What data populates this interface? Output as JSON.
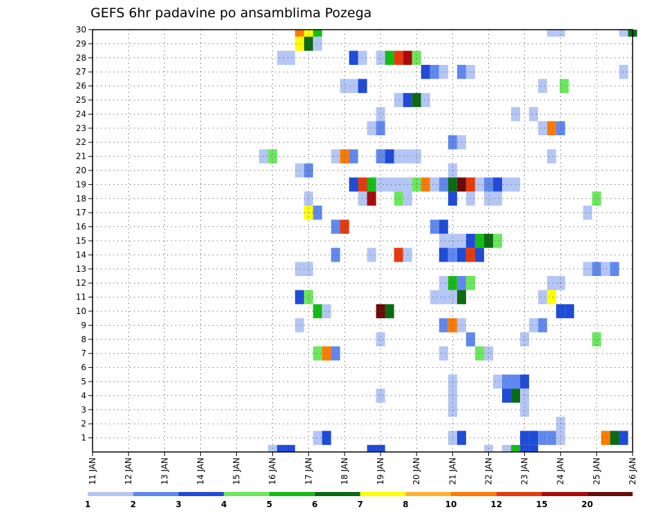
{
  "chart_data": {
    "type": "heatmap",
    "title": "GEFS 6hr padavine po ansamblima Pozega",
    "x_tick_labels": [
      "11 JAN",
      "12 JAN",
      "13 JAN",
      "14 JAN",
      "15 JAN",
      "16 JAN",
      "17 JAN",
      "18 JAN",
      "19 JAN",
      "20 JAN",
      "21 JAN",
      "22 JAN",
      "23 JAN",
      "24 JAN",
      "25 JAN",
      "26 JAN"
    ],
    "y_tick_labels": [
      "1",
      "2",
      "3",
      "4",
      "5",
      "6",
      "7",
      "8",
      "9",
      "10",
      "11",
      "12",
      "13",
      "14",
      "15",
      "16",
      "17",
      "18",
      "19",
      "20",
      "21",
      "22",
      "23",
      "24",
      "25",
      "26",
      "27",
      "28",
      "29",
      "30"
    ],
    "xlim": [
      "11 JAN 00Z",
      "26 JAN 00Z"
    ],
    "ylim": [
      0,
      30
    ],
    "grid": true,
    "colorbar": {
      "labels": [
        "1",
        "2",
        "3",
        "4",
        "5",
        "6",
        "7",
        "8",
        "10",
        "12",
        "15",
        "20"
      ],
      "colors": [
        "#b4c6f5",
        "#6088ee",
        "#1f4bd8",
        "#6ae85c",
        "#13bd13",
        "#0a6b13",
        "#ffff00",
        "#ffb02e",
        "#ff7a00",
        "#e63a0a",
        "#aa0a0a",
        "#6b0a0a"
      ]
    },
    "cells": [
      {
        "x": 5.75,
        "y": 30,
        "v": 10
      },
      {
        "x": 6.0,
        "y": 30,
        "v": 7
      },
      {
        "x": 6.25,
        "y": 30,
        "v": 5
      },
      {
        "x": 12.75,
        "y": 30,
        "v": 1
      },
      {
        "x": 13.0,
        "y": 30,
        "v": 1
      },
      {
        "x": 14.75,
        "y": 30,
        "v": 1
      },
      {
        "x": 15.0,
        "y": 30,
        "v": 6
      },
      {
        "x": 5.75,
        "y": 29,
        "v": 7
      },
      {
        "x": 6.0,
        "y": 29,
        "v": 6
      },
      {
        "x": 6.25,
        "y": 29,
        "v": 1
      },
      {
        "x": 5.25,
        "y": 28,
        "v": 1
      },
      {
        "x": 5.5,
        "y": 28,
        "v": 1
      },
      {
        "x": 7.25,
        "y": 28,
        "v": 3
      },
      {
        "x": 7.5,
        "y": 28,
        "v": 1
      },
      {
        "x": 8.0,
        "y": 28,
        "v": 1
      },
      {
        "x": 8.25,
        "y": 28,
        "v": 5
      },
      {
        "x": 8.5,
        "y": 28,
        "v": 12
      },
      {
        "x": 8.75,
        "y": 28,
        "v": 15
      },
      {
        "x": 9.0,
        "y": 28,
        "v": 4
      },
      {
        "x": 9.25,
        "y": 27,
        "v": 3
      },
      {
        "x": 9.5,
        "y": 27,
        "v": 2
      },
      {
        "x": 9.75,
        "y": 27,
        "v": 1
      },
      {
        "x": 10.25,
        "y": 27,
        "v": 2
      },
      {
        "x": 10.5,
        "y": 27,
        "v": 1
      },
      {
        "x": 14.75,
        "y": 27,
        "v": 1
      },
      {
        "x": 7.0,
        "y": 26,
        "v": 1
      },
      {
        "x": 7.25,
        "y": 26,
        "v": 1
      },
      {
        "x": 7.5,
        "y": 26,
        "v": 3
      },
      {
        "x": 12.5,
        "y": 26,
        "v": 1
      },
      {
        "x": 13.1,
        "y": 26,
        "v": 4
      },
      {
        "x": 8.5,
        "y": 25,
        "v": 1
      },
      {
        "x": 8.75,
        "y": 25,
        "v": 3
      },
      {
        "x": 9.0,
        "y": 25,
        "v": 6
      },
      {
        "x": 9.25,
        "y": 25,
        "v": 1
      },
      {
        "x": 8.0,
        "y": 24,
        "v": 1
      },
      {
        "x": 11.75,
        "y": 24,
        "v": 1
      },
      {
        "x": 12.25,
        "y": 24,
        "v": 1
      },
      {
        "x": 7.75,
        "y": 23,
        "v": 1
      },
      {
        "x": 8.0,
        "y": 23,
        "v": 2
      },
      {
        "x": 12.5,
        "y": 23,
        "v": 1
      },
      {
        "x": 12.75,
        "y": 23,
        "v": 10
      },
      {
        "x": 13.0,
        "y": 23,
        "v": 2
      },
      {
        "x": 10.0,
        "y": 22,
        "v": 2
      },
      {
        "x": 10.25,
        "y": 22,
        "v": 1
      },
      {
        "x": 4.75,
        "y": 21,
        "v": 1
      },
      {
        "x": 5.0,
        "y": 21,
        "v": 4
      },
      {
        "x": 6.75,
        "y": 21,
        "v": 1
      },
      {
        "x": 7.0,
        "y": 21,
        "v": 10
      },
      {
        "x": 7.25,
        "y": 21,
        "v": 2
      },
      {
        "x": 8.0,
        "y": 21,
        "v": 2
      },
      {
        "x": 8.25,
        "y": 21,
        "v": 3
      },
      {
        "x": 8.5,
        "y": 21,
        "v": 1
      },
      {
        "x": 8.75,
        "y": 21,
        "v": 1
      },
      {
        "x": 9.0,
        "y": 21,
        "v": 1
      },
      {
        "x": 12.75,
        "y": 21,
        "v": 1
      },
      {
        "x": 5.75,
        "y": 20,
        "v": 1
      },
      {
        "x": 6.0,
        "y": 20,
        "v": 2
      },
      {
        "x": 10.0,
        "y": 20,
        "v": 1
      },
      {
        "x": 7.25,
        "y": 19,
        "v": 3
      },
      {
        "x": 7.5,
        "y": 19,
        "v": 12
      },
      {
        "x": 7.75,
        "y": 19,
        "v": 5
      },
      {
        "x": 8.0,
        "y": 19,
        "v": 1
      },
      {
        "x": 8.25,
        "y": 19,
        "v": 1
      },
      {
        "x": 8.5,
        "y": 19,
        "v": 1
      },
      {
        "x": 8.75,
        "y": 19,
        "v": 1
      },
      {
        "x": 9.0,
        "y": 19,
        "v": 4
      },
      {
        "x": 9.25,
        "y": 19,
        "v": 10
      },
      {
        "x": 9.5,
        "y": 19,
        "v": 1
      },
      {
        "x": 9.75,
        "y": 19,
        "v": 2
      },
      {
        "x": 10.0,
        "y": 19,
        "v": 6
      },
      {
        "x": 10.25,
        "y": 19,
        "v": 20
      },
      {
        "x": 10.5,
        "y": 19,
        "v": 12
      },
      {
        "x": 10.75,
        "y": 19,
        "v": 1
      },
      {
        "x": 11.0,
        "y": 19,
        "v": 2
      },
      {
        "x": 11.25,
        "y": 19,
        "v": 3
      },
      {
        "x": 11.5,
        "y": 19,
        "v": 1
      },
      {
        "x": 11.75,
        "y": 19,
        "v": 1
      },
      {
        "x": 6.0,
        "y": 18,
        "v": 1
      },
      {
        "x": 7.5,
        "y": 18,
        "v": 1
      },
      {
        "x": 7.75,
        "y": 18,
        "v": 15
      },
      {
        "x": 8.5,
        "y": 18,
        "v": 4
      },
      {
        "x": 8.75,
        "y": 18,
        "v": 1
      },
      {
        "x": 10.0,
        "y": 18,
        "v": 3
      },
      {
        "x": 10.5,
        "y": 18,
        "v": 1
      },
      {
        "x": 11.0,
        "y": 18,
        "v": 1
      },
      {
        "x": 11.25,
        "y": 18,
        "v": 1
      },
      {
        "x": 14.0,
        "y": 18,
        "v": 4
      },
      {
        "x": 6.0,
        "y": 17,
        "v": 7
      },
      {
        "x": 6.25,
        "y": 17,
        "v": 2
      },
      {
        "x": 13.75,
        "y": 17,
        "v": 1
      },
      {
        "x": 6.75,
        "y": 16,
        "v": 2
      },
      {
        "x": 7.0,
        "y": 16,
        "v": 12
      },
      {
        "x": 9.5,
        "y": 16,
        "v": 2
      },
      {
        "x": 9.75,
        "y": 16,
        "v": 3
      },
      {
        "x": 9.75,
        "y": 15,
        "v": 1
      },
      {
        "x": 10.0,
        "y": 15,
        "v": 1
      },
      {
        "x": 10.25,
        "y": 15,
        "v": 1
      },
      {
        "x": 10.5,
        "y": 15,
        "v": 3
      },
      {
        "x": 10.75,
        "y": 15,
        "v": 5
      },
      {
        "x": 11.0,
        "y": 15,
        "v": 6
      },
      {
        "x": 11.25,
        "y": 15,
        "v": 4
      },
      {
        "x": 6.75,
        "y": 14,
        "v": 2
      },
      {
        "x": 7.75,
        "y": 14,
        "v": 1
      },
      {
        "x": 8.5,
        "y": 14,
        "v": 12
      },
      {
        "x": 8.75,
        "y": 14,
        "v": 1
      },
      {
        "x": 9.75,
        "y": 14,
        "v": 3
      },
      {
        "x": 10.0,
        "y": 14,
        "v": 2
      },
      {
        "x": 10.25,
        "y": 14,
        "v": 3
      },
      {
        "x": 10.5,
        "y": 14,
        "v": 12
      },
      {
        "x": 10.75,
        "y": 14,
        "v": 3
      },
      {
        "x": 5.75,
        "y": 13,
        "v": 1
      },
      {
        "x": 6.0,
        "y": 13,
        "v": 1
      },
      {
        "x": 13.75,
        "y": 13,
        "v": 1
      },
      {
        "x": 14.0,
        "y": 13,
        "v": 2
      },
      {
        "x": 14.25,
        "y": 13,
        "v": 1
      },
      {
        "x": 14.5,
        "y": 13,
        "v": 2
      },
      {
        "x": 9.75,
        "y": 12,
        "v": 1
      },
      {
        "x": 10.0,
        "y": 12,
        "v": 5
      },
      {
        "x": 10.25,
        "y": 12,
        "v": 2
      },
      {
        "x": 10.5,
        "y": 12,
        "v": 4
      },
      {
        "x": 12.75,
        "y": 12,
        "v": 1
      },
      {
        "x": 13.0,
        "y": 12,
        "v": 1
      },
      {
        "x": 5.75,
        "y": 11,
        "v": 3
      },
      {
        "x": 6.0,
        "y": 11,
        "v": 4
      },
      {
        "x": 9.5,
        "y": 11,
        "v": 1
      },
      {
        "x": 9.75,
        "y": 11,
        "v": 1
      },
      {
        "x": 10.0,
        "y": 11,
        "v": 1
      },
      {
        "x": 10.25,
        "y": 11,
        "v": 6
      },
      {
        "x": 12.5,
        "y": 11,
        "v": 1
      },
      {
        "x": 12.75,
        "y": 11,
        "v": 7
      },
      {
        "x": 6.25,
        "y": 10,
        "v": 5
      },
      {
        "x": 6.5,
        "y": 10,
        "v": 1
      },
      {
        "x": 8.0,
        "y": 10,
        "v": 20
      },
      {
        "x": 8.25,
        "y": 10,
        "v": 6
      },
      {
        "x": 13.0,
        "y": 10,
        "v": 3
      },
      {
        "x": 13.25,
        "y": 10,
        "v": 3
      },
      {
        "x": 5.75,
        "y": 9,
        "v": 1
      },
      {
        "x": 9.75,
        "y": 9,
        "v": 2
      },
      {
        "x": 10.0,
        "y": 9,
        "v": 10
      },
      {
        "x": 10.25,
        "y": 9,
        "v": 1
      },
      {
        "x": 12.25,
        "y": 9,
        "v": 1
      },
      {
        "x": 12.5,
        "y": 9,
        "v": 2
      },
      {
        "x": 8.0,
        "y": 8,
        "v": 1
      },
      {
        "x": 10.5,
        "y": 8,
        "v": 2
      },
      {
        "x": 12.0,
        "y": 8,
        "v": 1
      },
      {
        "x": 14.0,
        "y": 8,
        "v": 4
      },
      {
        "x": 6.25,
        "y": 7,
        "v": 4
      },
      {
        "x": 6.5,
        "y": 7,
        "v": 10
      },
      {
        "x": 6.75,
        "y": 7,
        "v": 2
      },
      {
        "x": 9.75,
        "y": 7,
        "v": 1
      },
      {
        "x": 10.75,
        "y": 7,
        "v": 4
      },
      {
        "x": 11.0,
        "y": 7,
        "v": 1
      },
      {
        "x": 10.0,
        "y": 5,
        "v": 1
      },
      {
        "x": 11.25,
        "y": 5,
        "v": 1
      },
      {
        "x": 11.5,
        "y": 5,
        "v": 2
      },
      {
        "x": 11.75,
        "y": 5,
        "v": 2
      },
      {
        "x": 12.0,
        "y": 5,
        "v": 3
      },
      {
        "x": 8.0,
        "y": 4,
        "v": 1
      },
      {
        "x": 10.0,
        "y": 4,
        "v": 1
      },
      {
        "x": 11.5,
        "y": 4,
        "v": 3
      },
      {
        "x": 11.75,
        "y": 4,
        "v": 6
      },
      {
        "x": 12.0,
        "y": 4,
        "v": 1
      },
      {
        "x": 10.0,
        "y": 3,
        "v": 1
      },
      {
        "x": 12.0,
        "y": 3,
        "v": 1
      },
      {
        "x": 13.0,
        "y": 2,
        "v": 1
      },
      {
        "x": 6.25,
        "y": 1,
        "v": 1
      },
      {
        "x": 6.5,
        "y": 1,
        "v": 3
      },
      {
        "x": 10.0,
        "y": 1,
        "v": 1
      },
      {
        "x": 10.25,
        "y": 1,
        "v": 3
      },
      {
        "x": 12.0,
        "y": 1,
        "v": 3
      },
      {
        "x": 12.25,
        "y": 1,
        "v": 3
      },
      {
        "x": 12.5,
        "y": 1,
        "v": 2
      },
      {
        "x": 12.75,
        "y": 1,
        "v": 2
      },
      {
        "x": 13.0,
        "y": 1,
        "v": 1
      },
      {
        "x": 14.25,
        "y": 1,
        "v": 10
      },
      {
        "x": 14.5,
        "y": 1,
        "v": 6
      },
      {
        "x": 14.75,
        "y": 1,
        "v": 3
      },
      {
        "x": 5.0,
        "y": 0,
        "v": 1
      },
      {
        "x": 5.25,
        "y": 0,
        "v": 3
      },
      {
        "x": 5.5,
        "y": 0,
        "v": 3
      },
      {
        "x": 7.75,
        "y": 0,
        "v": 3
      },
      {
        "x": 8.0,
        "y": 0,
        "v": 3
      },
      {
        "x": 11.0,
        "y": 0,
        "v": 1
      },
      {
        "x": 11.5,
        "y": 0,
        "v": 1
      },
      {
        "x": 11.75,
        "y": 0,
        "v": 5
      },
      {
        "x": 12.0,
        "y": 0,
        "v": 3
      },
      {
        "x": 12.25,
        "y": 0,
        "v": 3
      }
    ]
  }
}
